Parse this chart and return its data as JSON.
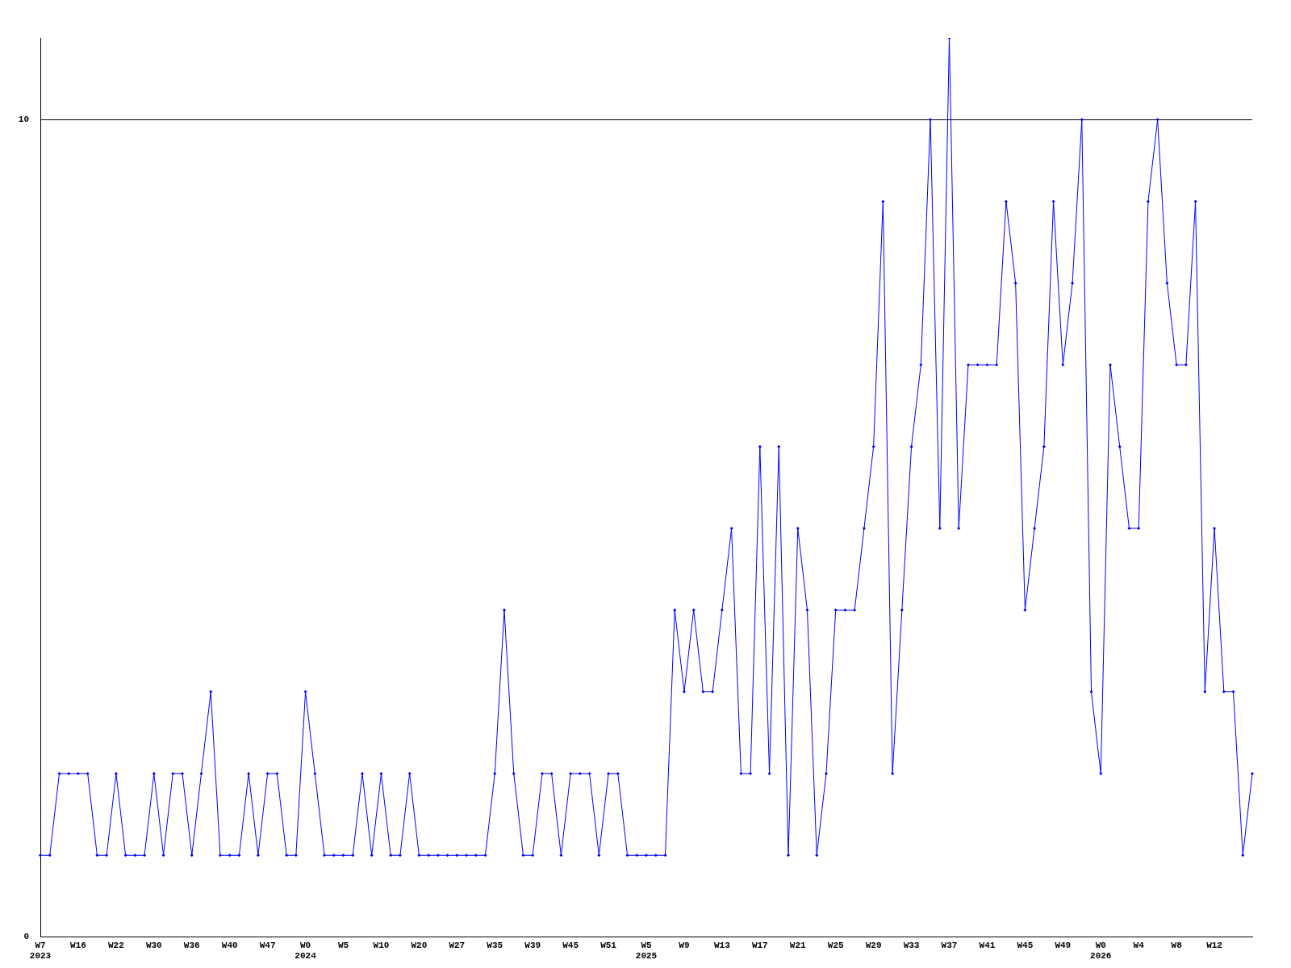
{
  "chart_data": {
    "type": "line",
    "categories": [
      "W7\n2023",
      null,
      null,
      null,
      "W16",
      null,
      null,
      null,
      "W22",
      null,
      null,
      null,
      "W30",
      null,
      null,
      null,
      "W36",
      null,
      null,
      null,
      "W40",
      null,
      null,
      null,
      "W47",
      null,
      null,
      null,
      "W0\n2024",
      null,
      null,
      null,
      "W5",
      null,
      null,
      null,
      "W10",
      null,
      null,
      null,
      "W20",
      null,
      null,
      null,
      "W27",
      null,
      null,
      null,
      "W35",
      null,
      null,
      null,
      "W39",
      null,
      null,
      null,
      "W45",
      null,
      null,
      null,
      "W51",
      null,
      null,
      null,
      "W5\n2025",
      null,
      null,
      null,
      "W9",
      null,
      null,
      null,
      "W13",
      null,
      null,
      null,
      "W17",
      null,
      null,
      null,
      "W21",
      null,
      null,
      null,
      "W25",
      null,
      null,
      null,
      "W29",
      null,
      null,
      null,
      "W33",
      null,
      null,
      null,
      "W37",
      null,
      null,
      null,
      "W41",
      null,
      null,
      null,
      "W45",
      null,
      null,
      null,
      "W49",
      null,
      null,
      null,
      "W0\n2026",
      null,
      null,
      null,
      "W4",
      null,
      null,
      null,
      "W8",
      null,
      null,
      null,
      "W12",
      null,
      null,
      null,
      null
    ],
    "series": [
      {
        "color": "#0000ff",
        "values": [
          1,
          1,
          2,
          2,
          2,
          2,
          1,
          1,
          2,
          1,
          1,
          1,
          2,
          1,
          2,
          2,
          1,
          2,
          3,
          1,
          1,
          1,
          2,
          1,
          2,
          2,
          1,
          1,
          3,
          2,
          1,
          1,
          1,
          1,
          2,
          1,
          2,
          1,
          1,
          2,
          1,
          1,
          1,
          1,
          1,
          1,
          1,
          1,
          2,
          4,
          2,
          1,
          1,
          2,
          2,
          1,
          2,
          2,
          2,
          1,
          2,
          2,
          1,
          1,
          1,
          1,
          1,
          4,
          3,
          4,
          3,
          3,
          4,
          5,
          2,
          2,
          6,
          2,
          6,
          1,
          5,
          4,
          1,
          2,
          4,
          4,
          4,
          5,
          6,
          9,
          2,
          4,
          6,
          7,
          10,
          5,
          11,
          5,
          7,
          7,
          7,
          7,
          9,
          8,
          4,
          5,
          6,
          9,
          7,
          8,
          10,
          3,
          2,
          7,
          6,
          5,
          5,
          9,
          10,
          8,
          7,
          7,
          9,
          3,
          5,
          3,
          3,
          1,
          2
        ]
      }
    ],
    "ylim": [
      0,
      11
    ],
    "yticks": [
      0,
      10
    ],
    "grid": "y",
    "legend": false,
    "marker": "diamond",
    "line_style": "solid"
  }
}
